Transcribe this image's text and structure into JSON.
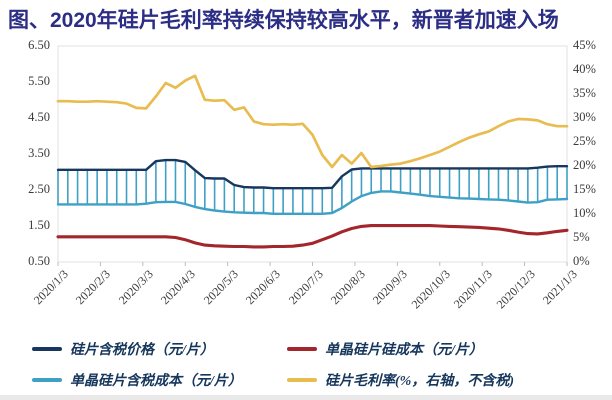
{
  "title": "图、2020年硅片毛利率持续保持较高水平，新晋者加速入场",
  "colors": {
    "title": "#2c2d85",
    "price_line": "#17375e",
    "silicon_cost_line": "#a3262c",
    "cost_incl_tax_line": "#3fa0c5",
    "margin_line": "#e9bc4f",
    "axis_text": "#3a3a3a",
    "legend_text": "#16365c",
    "plot_border": "#e2e2e2"
  },
  "chart_data": {
    "type": "line",
    "frequency": "weekly",
    "x_range": [
      "2020/1/3",
      "2021/1/3"
    ],
    "x_tick_labels": [
      "2020/1/3",
      "2020/2/3",
      "2020/3/3",
      "2020/4/3",
      "2020/5/3",
      "2020/6/3",
      "2020/7/3",
      "2020/8/3",
      "2020/9/3",
      "2020/10/3",
      "2020/11/3",
      "2020/12/3",
      "2021/1/3"
    ],
    "left_axis": {
      "min": 0.5,
      "max": 6.5,
      "tick_labels": [
        "6.50",
        "5.50",
        "4.50",
        "3.50",
        "2.50",
        "1.50",
        "0.50"
      ]
    },
    "right_axis": {
      "min": 0,
      "max": 45,
      "tick_labels": [
        "45%",
        "40%",
        "35%",
        "30%",
        "25%",
        "20%",
        "15%",
        "10%",
        "5%",
        "0%"
      ]
    },
    "grid": false,
    "legend_position": "bottom",
    "hatch_between_series": [
      0,
      2
    ],
    "series": [
      {
        "name": "硅片含税价格（元/片）",
        "axis": "left",
        "color": "#17375e",
        "width": 2.4,
        "values": [
          3.06,
          3.06,
          3.06,
          3.06,
          3.06,
          3.06,
          3.06,
          3.06,
          3.06,
          3.06,
          3.3,
          3.33,
          3.33,
          3.28,
          3.05,
          2.83,
          2.82,
          2.82,
          2.64,
          2.58,
          2.57,
          2.57,
          2.55,
          2.55,
          2.55,
          2.55,
          2.55,
          2.55,
          2.56,
          2.88,
          3.07,
          3.1,
          3.1,
          3.1,
          3.1,
          3.1,
          3.1,
          3.1,
          3.1,
          3.1,
          3.1,
          3.1,
          3.1,
          3.1,
          3.1,
          3.1,
          3.1,
          3.1,
          3.1,
          3.12,
          3.15,
          3.16,
          3.16
        ]
      },
      {
        "name": "单晶硅片硅成本（元/片）",
        "axis": "left",
        "color": "#a3262c",
        "width": 3.1,
        "values": [
          1.2,
          1.2,
          1.2,
          1.2,
          1.2,
          1.2,
          1.2,
          1.2,
          1.2,
          1.2,
          1.2,
          1.2,
          1.18,
          1.12,
          1.03,
          0.97,
          0.95,
          0.94,
          0.93,
          0.93,
          0.92,
          0.92,
          0.93,
          0.93,
          0.94,
          0.97,
          1.02,
          1.12,
          1.22,
          1.34,
          1.43,
          1.49,
          1.51,
          1.51,
          1.51,
          1.51,
          1.51,
          1.51,
          1.51,
          1.5,
          1.49,
          1.48,
          1.47,
          1.46,
          1.44,
          1.42,
          1.38,
          1.33,
          1.29,
          1.28,
          1.31,
          1.35,
          1.38
        ]
      },
      {
        "name": "单晶硅片含税成本（元/片）",
        "axis": "left",
        "color": "#3fa0c5",
        "width": 2.4,
        "values": [
          2.1,
          2.1,
          2.1,
          2.1,
          2.1,
          2.1,
          2.1,
          2.1,
          2.1,
          2.12,
          2.16,
          2.17,
          2.17,
          2.11,
          2.03,
          1.97,
          1.93,
          1.9,
          1.88,
          1.87,
          1.86,
          1.86,
          1.84,
          1.84,
          1.84,
          1.84,
          1.84,
          1.84,
          1.86,
          2.0,
          2.18,
          2.33,
          2.42,
          2.46,
          2.46,
          2.43,
          2.4,
          2.37,
          2.33,
          2.31,
          2.29,
          2.27,
          2.26,
          2.25,
          2.24,
          2.23,
          2.21,
          2.18,
          2.15,
          2.16,
          2.23,
          2.24,
          2.25
        ]
      },
      {
        "name": "硅片毛利率(%，右轴，不含税)",
        "axis": "right",
        "color": "#e9bc4f",
        "width": 2.7,
        "values": [
          33.5,
          33.5,
          33.4,
          33.4,
          33.5,
          33.4,
          33.3,
          33.0,
          32.1,
          32.0,
          34.5,
          37.3,
          36.3,
          37.8,
          38.8,
          33.8,
          33.6,
          33.7,
          31.7,
          32.2,
          29.3,
          28.7,
          28.6,
          28.7,
          28.6,
          28.8,
          26.5,
          22.3,
          19.8,
          22.3,
          20.5,
          22.7,
          19.8,
          20.0,
          20.3,
          20.5,
          21.0,
          21.6,
          22.3,
          23.0,
          24.0,
          25.0,
          25.9,
          26.6,
          27.2,
          28.3,
          29.3,
          29.8,
          29.7,
          29.5,
          28.7,
          28.3,
          28.3
        ]
      }
    ]
  },
  "legend": {
    "items": [
      {
        "label": "硅片含税价格（元/片）",
        "color": "#17375e"
      },
      {
        "label": "单晶硅片硅成本（元/片）",
        "color": "#a3262c"
      },
      {
        "label": "单晶硅片含税成本（元/片）",
        "color": "#3fa0c5"
      },
      {
        "label": "硅片毛利率(%，右轴，不含税)",
        "color": "#e9bc4f"
      }
    ]
  }
}
